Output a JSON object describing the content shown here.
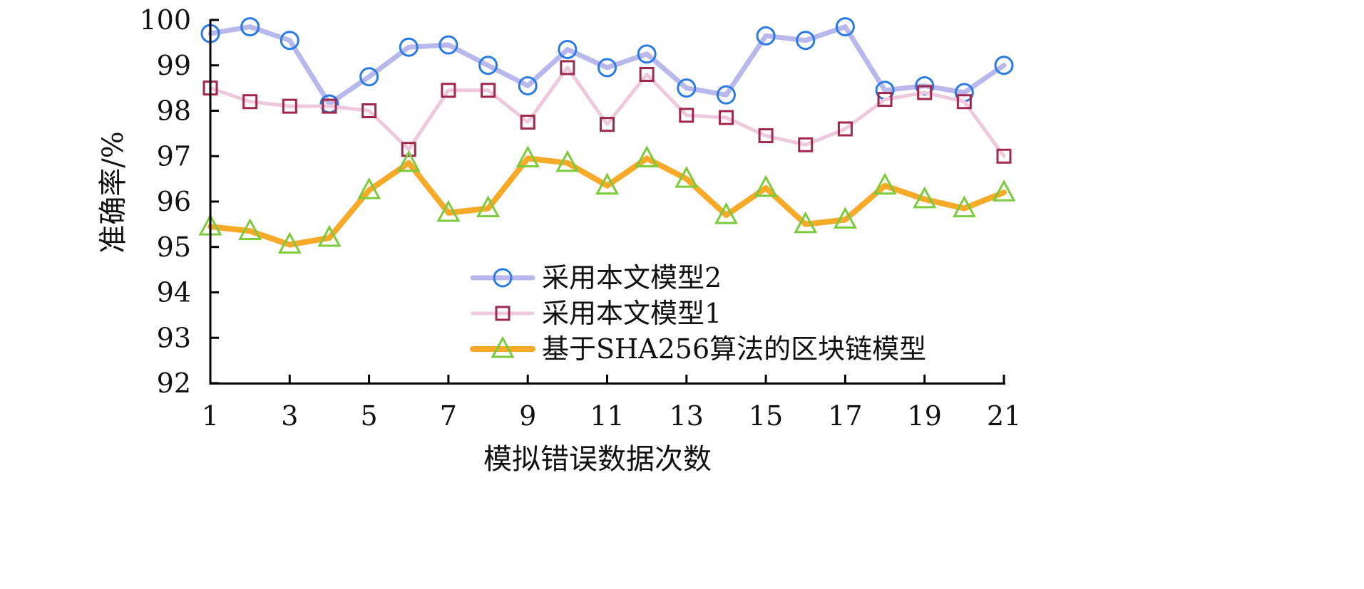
{
  "chart_data": {
    "type": "line",
    "title": "",
    "xlabel": "模拟错误数据次数",
    "ylabel": "准确率/%",
    "x": [
      1,
      2,
      3,
      4,
      5,
      6,
      7,
      8,
      9,
      10,
      11,
      12,
      13,
      14,
      15,
      16,
      17,
      18,
      19,
      20,
      21
    ],
    "xticks": [
      "1",
      "3",
      "5",
      "7",
      "9",
      "11",
      "13",
      "15",
      "17",
      "19",
      "21"
    ],
    "yticks": [
      "92",
      "93",
      "94",
      "95",
      "96",
      "97",
      "98",
      "99",
      "100"
    ],
    "xlim": [
      1,
      21
    ],
    "ylim": [
      92,
      100
    ],
    "grid": false,
    "legend_position": "bottom-right",
    "series": [
      {
        "name": "采用本文模型2",
        "marker": "circle",
        "line_color": "#b8b8ec",
        "marker_color": "#2b7be4",
        "values": [
          99.7,
          99.85,
          99.55,
          98.15,
          98.75,
          99.4,
          99.45,
          99.0,
          98.55,
          99.35,
          98.95,
          99.25,
          98.5,
          98.35,
          99.65,
          99.55,
          99.85,
          98.45,
          98.55,
          98.4,
          99.0
        ]
      },
      {
        "name": "采用本文模型1",
        "marker": "square",
        "line_color": "#eec8dc",
        "marker_color": "#a0284c",
        "values": [
          98.5,
          98.2,
          98.1,
          98.1,
          98.0,
          97.15,
          98.45,
          98.45,
          97.75,
          98.95,
          97.7,
          98.8,
          97.9,
          97.85,
          97.45,
          97.25,
          97.6,
          98.25,
          98.4,
          98.2,
          97.0
        ]
      },
      {
        "name": "基于SHA256算法的区块链模型",
        "marker": "triangle",
        "line_color": "#f7a928",
        "marker_color": "#7ccb3c",
        "values": [
          95.45,
          95.35,
          95.05,
          95.2,
          96.25,
          96.85,
          95.75,
          95.85,
          96.95,
          96.85,
          96.35,
          96.95,
          96.5,
          95.7,
          96.3,
          95.5,
          95.6,
          96.35,
          96.05,
          95.85,
          96.2
        ]
      }
    ]
  }
}
